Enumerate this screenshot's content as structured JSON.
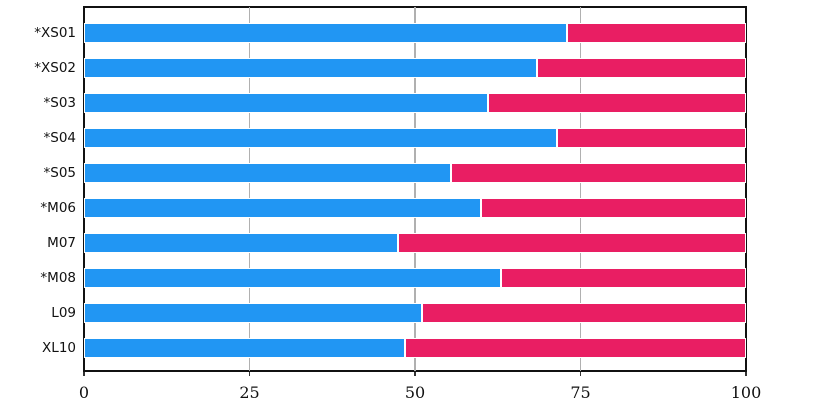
{
  "chart_data": {
    "type": "bar",
    "orientation": "horizontal",
    "stacked": true,
    "categories": [
      "*XS01",
      "*XS02",
      "*S03",
      "*S04",
      "*S05",
      "*M06",
      "M07",
      "*M08",
      "L09",
      "XL10"
    ],
    "series": [
      {
        "name": "series-1-blue",
        "color": "#2196F3",
        "values": [
          73,
          68.5,
          61,
          71.5,
          55.5,
          60,
          47.5,
          63,
          51,
          48.5
        ]
      },
      {
        "name": "series-2-pink",
        "color": "#E91E63",
        "values": [
          27,
          31.5,
          39,
          28.5,
          44.5,
          40,
          52.5,
          37,
          49,
          51.5
        ]
      }
    ],
    "xlim": [
      0,
      100
    ],
    "xticks": [
      0,
      25,
      50,
      75,
      100
    ],
    "grid": "vertical",
    "gridline_color": "#b0b0b0",
    "bar_edge_color": "#ffffff",
    "legend": "none"
  }
}
